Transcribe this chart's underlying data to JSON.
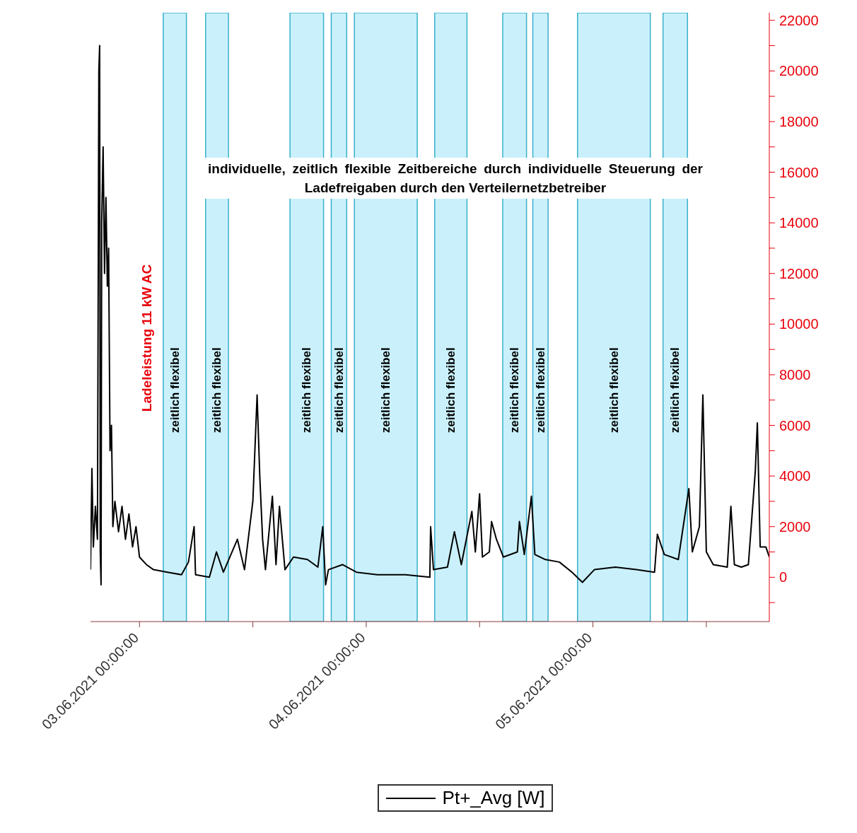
{
  "chart_data": {
    "type": "line",
    "ylabel": "Ladeleistung 11 kW AC",
    "annotations": [
      "individuelle, zeitlich flexible Zeitbereiche durch individuelle Steuerung der Ladefreigaben durch den Verteilernetzbetreiber"
    ],
    "x": [
      "2021-06-02T18:49",
      "2021-06-02T18:58",
      "2021-06-02T19:07",
      "2021-06-02T19:20",
      "2021-06-02T19:33",
      "2021-06-02T19:42",
      "2021-06-02T19:47",
      "2021-06-02T19:51",
      "2021-06-02T19:56",
      "2021-06-02T20:00",
      "2021-06-02T20:09",
      "2021-06-02T20:18",
      "2021-06-02T20:27",
      "2021-06-02T20:36",
      "2021-06-02T20:44",
      "2021-06-02T20:53",
      "2021-06-02T21:02",
      "2021-06-02T21:11",
      "2021-06-02T21:24",
      "2021-06-02T21:47",
      "2021-06-02T22:09",
      "2021-06-02T22:31",
      "2021-06-02T22:53",
      "2021-06-02T23:16",
      "2021-06-02T23:38",
      "2021-06-03T00:00",
      "2021-06-03T00:44",
      "2021-06-03T01:29",
      "2021-06-03T02:58",
      "2021-06-03T04:27",
      "2021-06-03T05:11",
      "2021-06-03T05:47",
      "2021-06-03T05:56",
      "2021-06-03T07:24",
      "2021-06-03T08:09",
      "2021-06-03T08:53",
      "2021-06-03T10:22",
      "2021-06-03T11:07",
      "2021-06-03T12:00",
      "2021-06-03T12:27",
      "2021-06-03T12:44",
      "2021-06-03T13:02",
      "2021-06-03T13:20",
      "2021-06-03T14:04",
      "2021-06-03T14:27",
      "2021-06-03T14:49",
      "2021-06-03T15:24",
      "2021-06-03T16:18",
      "2021-06-03T17:47",
      "2021-06-03T18:53",
      "2021-06-03T19:24",
      "2021-06-03T19:42",
      "2021-06-03T20:00",
      "2021-06-03T21:29",
      "2021-06-03T22:58",
      "2021-06-04T01:11",
      "2021-06-04T04:09",
      "2021-06-04T06:44",
      "2021-06-04T06:49",
      "2021-06-04T07:07",
      "2021-06-04T08:36",
      "2021-06-04T09:20",
      "2021-06-04T10:04",
      "2021-06-04T11:11",
      "2021-06-04T11:33",
      "2021-06-04T12:00",
      "2021-06-04T12:18",
      "2021-06-04T13:02",
      "2021-06-04T13:16",
      "2021-06-04T13:47",
      "2021-06-04T14:31",
      "2021-06-04T16:00",
      "2021-06-04T16:13",
      "2021-06-04T16:44",
      "2021-06-04T17:29",
      "2021-06-04T17:51",
      "2021-06-04T18:58",
      "2021-06-04T20:27",
      "2021-06-04T21:47",
      "2021-06-04T22:53",
      "2021-06-05T00:09",
      "2021-06-05T02:22",
      "2021-06-05T04:36",
      "2021-06-05T06:31",
      "2021-06-05T06:49",
      "2021-06-05T07:33",
      "2021-06-05T09:02",
      "2021-06-05T10:09",
      "2021-06-05T10:31",
      "2021-06-05T11:16",
      "2021-06-05T11:38",
      "2021-06-05T12:00",
      "2021-06-05T12:44",
      "2021-06-05T14:13",
      "2021-06-05T14:36",
      "2021-06-05T14:58",
      "2021-06-05T15:42",
      "2021-06-05T16:27",
      "2021-06-05T17:11",
      "2021-06-05T17:24",
      "2021-06-05T17:42",
      "2021-06-05T18:18",
      "2021-06-05T18:40"
    ],
    "series": [
      {
        "name": "Pt+_Avg [W]",
        "color": "#000000",
        "values": [
          300,
          4300,
          1200,
          2800,
          1500,
          20000,
          21000,
          1000,
          -300,
          14000,
          17000,
          12000,
          15000,
          11500,
          13000,
          5000,
          6000,
          2000,
          3000,
          1800,
          2800,
          1500,
          2500,
          1200,
          2000,
          800,
          500,
          300,
          200,
          100,
          600,
          2000,
          100,
          0,
          1000,
          200,
          1500,
          300,
          3000,
          7200,
          4000,
          1500,
          300,
          3200,
          500,
          2800,
          300,
          800,
          700,
          400,
          2000,
          -300,
          300,
          500,
          200,
          100,
          100,
          0,
          2000,
          300,
          400,
          1800,
          500,
          2600,
          1000,
          3300,
          800,
          1000,
          2200,
          1500,
          800,
          1000,
          2200,
          900,
          3200,
          900,
          700,
          600,
          200,
          -200,
          300,
          400,
          300,
          200,
          1700,
          900,
          700,
          3500,
          1000,
          2000,
          7200,
          1000,
          500,
          400,
          2800,
          500,
          400,
          500,
          4200,
          6100,
          1200,
          1200,
          800
        ]
      }
    ],
    "xlim": [
      "2021-06-02T18:49",
      "2021-06-05T18:40"
    ],
    "xticks": [
      {
        "value": "2021-06-03T00:00",
        "label": "03.06.2021 00:00:00"
      },
      {
        "value": "2021-06-03T12:00",
        "label": null
      },
      {
        "value": "2021-06-04T00:00",
        "label": "04.06.2021 00:00:00"
      },
      {
        "value": "2021-06-04T12:00",
        "label": null
      },
      {
        "value": "2021-06-05T00:00",
        "label": "05.06.2021 00:00:00"
      },
      {
        "value": "2021-06-05T12:00",
        "label": null
      }
    ],
    "ylim": [
      -1750,
      22300
    ],
    "yticks": [
      {
        "value": -1000,
        "label": null
      },
      0,
      {
        "value": 1000,
        "label": null
      },
      2000,
      {
        "value": 3000,
        "label": null
      },
      4000,
      {
        "value": 5000,
        "label": null
      },
      6000,
      {
        "value": 7000,
        "label": null
      },
      8000,
      {
        "value": 9000,
        "label": null
      },
      10000,
      {
        "value": 11000,
        "label": null
      },
      12000,
      {
        "value": 13000,
        "label": null
      },
      14000,
      {
        "value": 15000,
        "label": null
      },
      16000,
      {
        "value": 17000,
        "label": null
      },
      18000,
      {
        "value": 19000,
        "label": null
      },
      20000,
      {
        "value": 21000,
        "label": null
      },
      22000
    ],
    "bands": [
      {
        "axis": "x",
        "from": "2021-06-03T02:31",
        "to": "2021-06-03T04:58",
        "label": "zeitlich flexibel",
        "color": "#b8ecfa"
      },
      {
        "axis": "x",
        "from": "2021-06-03T07:00",
        "to": "2021-06-03T09:25",
        "label": "zeitlich flexibel",
        "color": "#b8ecfa"
      },
      {
        "axis": "x",
        "from": "2021-06-03T15:56",
        "to": "2021-06-03T19:29",
        "label": "zeitlich flexibel",
        "color": "#b8ecfa"
      },
      {
        "axis": "x",
        "from": "2021-06-03T20:18",
        "to": "2021-06-03T21:56",
        "label": "zeitlich flexibel",
        "color": "#b8ecfa"
      },
      {
        "axis": "x",
        "from": "2021-06-03T22:45",
        "to": "2021-06-04T05:24",
        "label": "zeitlich flexibel",
        "color": "#b8ecfa"
      },
      {
        "axis": "x",
        "from": "2021-06-04T07:15",
        "to": "2021-06-04T10:40",
        "label": "zeitlich flexibel",
        "color": "#b8ecfa"
      },
      {
        "axis": "x",
        "from": "2021-06-04T14:27",
        "to": "2021-06-04T16:58",
        "label": "zeitlich flexibel",
        "color": "#b8ecfa"
      },
      {
        "axis": "x",
        "from": "2021-06-04T17:38",
        "to": "2021-06-04T19:15",
        "label": "zeitlich flexibel",
        "color": "#b8ecfa"
      },
      {
        "axis": "x",
        "from": "2021-06-04T22:22",
        "to": "2021-06-05T06:04",
        "label": "zeitlich flexibel",
        "color": "#b8ecfa"
      },
      {
        "axis": "x",
        "from": "2021-06-05T07:25",
        "to": "2021-06-05T10:00",
        "label": "zeitlich flexibel",
        "color": "#b8ecfa"
      }
    ],
    "grid": false,
    "legend": "bottom",
    "marker": "none",
    "line_style": "solid"
  }
}
